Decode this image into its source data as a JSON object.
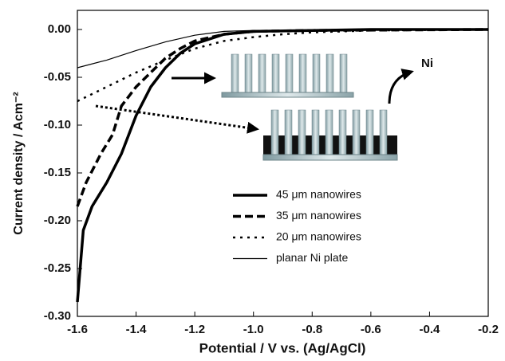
{
  "chart_data": {
    "type": "line",
    "xlabel": "Potential / V vs. (Ag/AgCl)",
    "ylabel": "Current density / Acm⁻²",
    "xlim": [
      -1.6,
      -0.2
    ],
    "ylim": [
      -0.3,
      0.02
    ],
    "xticks": [
      -1.6,
      -1.4,
      -1.2,
      {
        "value": -1,
        "label": "-1.0"
      },
      -0.8,
      -0.6,
      -0.4,
      -0.2
    ],
    "yticks": [
      {
        "value": 0,
        "label": "0.00"
      },
      {
        "value": -0.05,
        "label": "-0.05"
      },
      {
        "value": -0.1,
        "label": "-0.10"
      },
      {
        "value": -0.15,
        "label": "-0.15"
      },
      {
        "value": -0.2,
        "label": "-0.20"
      },
      {
        "value": -0.25,
        "label": "-0.25"
      },
      {
        "value": -0.3,
        "label": "-0.30"
      }
    ],
    "annotation": "Ni",
    "series": [
      {
        "name": "45 μm nanowires",
        "color": "#000000",
        "dash": "solid",
        "width": 3.5,
        "x": [
          -1.6,
          -1.58,
          -1.55,
          -1.5,
          -1.45,
          -1.4,
          -1.35,
          -1.3,
          -1.25,
          -1.2,
          -1.1,
          -1.0,
          -0.8,
          -0.6,
          -0.2
        ],
        "values": [
          -0.285,
          -0.21,
          -0.185,
          -0.16,
          -0.13,
          -0.09,
          -0.06,
          -0.04,
          -0.025,
          -0.015,
          -0.005,
          -0.002,
          -0.001,
          0,
          0
        ]
      },
      {
        "name": "35 μm nanowires",
        "color": "#000000",
        "dash": "dashed",
        "width": 3.5,
        "x": [
          -1.6,
          -1.57,
          -1.52,
          -1.48,
          -1.45,
          -1.4,
          -1.35,
          -1.3,
          -1.25,
          -1.2,
          -1.1,
          -1.0,
          -0.8,
          -0.2
        ],
        "values": [
          -0.185,
          -0.16,
          -0.13,
          -0.11,
          -0.08,
          -0.06,
          -0.045,
          -0.03,
          -0.02,
          -0.012,
          -0.005,
          -0.002,
          -0.001,
          0
        ]
      },
      {
        "name": "20 μm nanowires",
        "color": "#000000",
        "dash": "dotted",
        "width": 2.5,
        "x": [
          -1.6,
          -1.5,
          -1.4,
          -1.3,
          -1.2,
          -1.1,
          -1.0,
          -0.9,
          -0.8,
          -0.6,
          -0.2
        ],
        "values": [
          -0.075,
          -0.06,
          -0.045,
          -0.032,
          -0.02,
          -0.012,
          -0.008,
          -0.005,
          -0.003,
          -0.001,
          0
        ]
      },
      {
        "name": "planar Ni plate",
        "color": "#000000",
        "dash": "solid",
        "width": 1.2,
        "x": [
          -1.6,
          -1.5,
          -1.4,
          -1.3,
          -1.2,
          -1.1,
          -1.0,
          -0.2
        ],
        "values": [
          -0.04,
          -0.032,
          -0.022,
          -0.013,
          -0.006,
          -0.002,
          -0.001,
          0
        ]
      }
    ]
  }
}
